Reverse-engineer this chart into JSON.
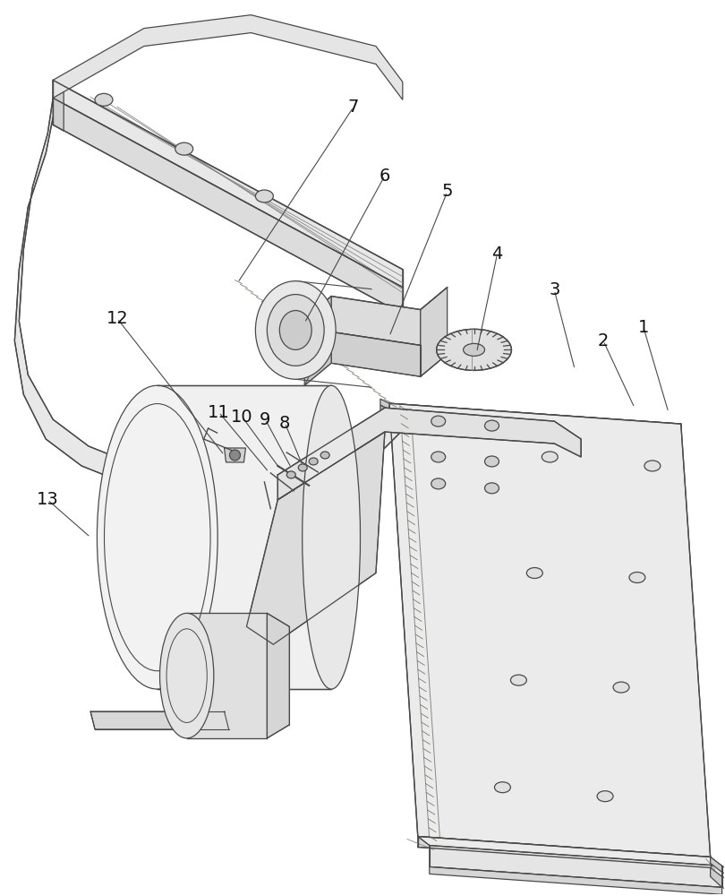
{
  "bg_color": "#ffffff",
  "lc": "#4a4a4a",
  "lc_light": "#888888",
  "lw": 0.9,
  "fig_width": 8.1,
  "fig_height": 10.0,
  "dpi": 100
}
